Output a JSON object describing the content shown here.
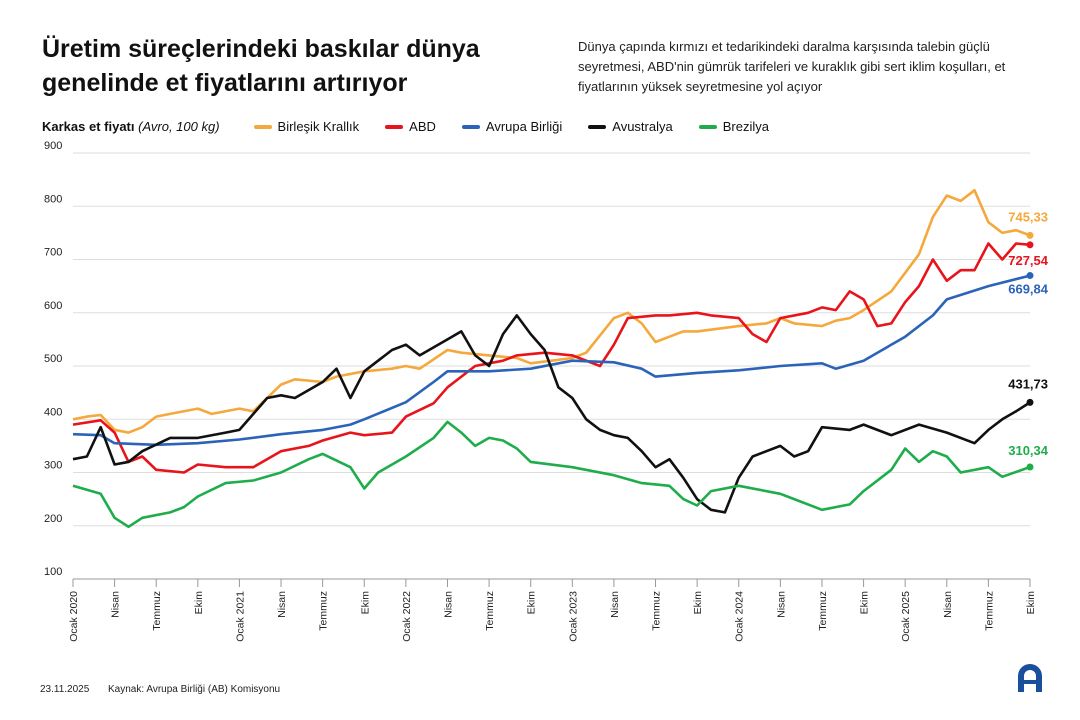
{
  "title": "Üretim süreçlerindeki baskılar dünya genelinde et fiyatlarını artırıyor",
  "subtitle": "Dünya çapında kırmızı et tedarikindeki daralma karşısında talebin güçlü seyretmesi, ABD'nin gümrük tarifeleri ve kuraklık gibi sert iklim koşulları, et fiyatlarının yüksek seyretmesine yol açıyor",
  "footer": {
    "date": "23.11.2025",
    "source": "Kaynak: Avrupa Birliği (AB) Komisyonu",
    "logo": "AA"
  },
  "chart_data": {
    "type": "line",
    "ylabel": "Karkas et fiyatı",
    "yunit": "(Avro, 100 kg)",
    "ylim": [
      100,
      900
    ],
    "yticks": [
      100,
      200,
      300,
      400,
      500,
      600,
      700,
      800,
      900
    ],
    "grid": true,
    "legend": "top",
    "xticks": [
      "Ocak 2020",
      "Nisan",
      "Temmuz",
      "Ekim",
      "Ocak 2021",
      "Nisan",
      "Temmuz",
      "Ekim",
      "Ocak 2022",
      "Nisan",
      "Temmuz",
      "Ekim",
      "Ocak 2023",
      "Nisan",
      "Temmuz",
      "Ekim",
      "Ocak 2024",
      "Nisan",
      "Temmuz",
      "Ekim",
      "Ocak 2025",
      "Nisan",
      "Temmuz",
      "Ekim"
    ],
    "series": [
      {
        "name": "Birleşik Krallık",
        "color": "#f5a83c",
        "end_label": "745,33",
        "points": [
          [
            "2020-01",
            400
          ],
          [
            "2020-02",
            405
          ],
          [
            "2020-03",
            408
          ],
          [
            "2020-04",
            380
          ],
          [
            "2020-05",
            375
          ],
          [
            "2020-06",
            385
          ],
          [
            "2020-07",
            405
          ],
          [
            "2020-08",
            410
          ],
          [
            "2020-10",
            420
          ],
          [
            "2020-11",
            410
          ],
          [
            "2021-01",
            420
          ],
          [
            "2021-02",
            415
          ],
          [
            "2021-04",
            465
          ],
          [
            "2021-05",
            475
          ],
          [
            "2021-07",
            470
          ],
          [
            "2021-08",
            480
          ],
          [
            "2021-10",
            490
          ],
          [
            "2021-12",
            495
          ],
          [
            "2022-01",
            500
          ],
          [
            "2022-02",
            495
          ],
          [
            "2022-04",
            530
          ],
          [
            "2022-05",
            525
          ],
          [
            "2022-07",
            520
          ],
          [
            "2022-09",
            515
          ],
          [
            "2022-10",
            505
          ],
          [
            "2023-01",
            515
          ],
          [
            "2023-02",
            525
          ],
          [
            "2023-04",
            590
          ],
          [
            "2023-05",
            600
          ],
          [
            "2023-06",
            580
          ],
          [
            "2023-07",
            545
          ],
          [
            "2023-08",
            555
          ],
          [
            "2023-09",
            565
          ],
          [
            "2023-10",
            565
          ],
          [
            "2024-01",
            575
          ],
          [
            "2024-03",
            580
          ],
          [
            "2024-04",
            590
          ],
          [
            "2024-05",
            580
          ],
          [
            "2024-07",
            575
          ],
          [
            "2024-08",
            585
          ],
          [
            "2024-09",
            590
          ],
          [
            "2024-10",
            605
          ],
          [
            "2024-12",
            640
          ],
          [
            "2025-01",
            675
          ],
          [
            "2025-02",
            710
          ],
          [
            "2025-03",
            780
          ],
          [
            "2025-04",
            820
          ],
          [
            "2025-05",
            810
          ],
          [
            "2025-06",
            830
          ],
          [
            "2025-07",
            770
          ],
          [
            "2025-08",
            750
          ],
          [
            "2025-09",
            755
          ],
          [
            "2025-10",
            745.33
          ]
        ]
      },
      {
        "name": "ABD",
        "color": "#e8141c",
        "end_label": "727,54",
        "points": [
          [
            "2020-01",
            390
          ],
          [
            "2020-03",
            398
          ],
          [
            "2020-04",
            375
          ],
          [
            "2020-05",
            320
          ],
          [
            "2020-06",
            330
          ],
          [
            "2020-07",
            305
          ],
          [
            "2020-09",
            300
          ],
          [
            "2020-10",
            315
          ],
          [
            "2020-12",
            310
          ],
          [
            "2021-01",
            310
          ],
          [
            "2021-02",
            310
          ],
          [
            "2021-04",
            340
          ],
          [
            "2021-06",
            350
          ],
          [
            "2021-07",
            360
          ],
          [
            "2021-09",
            375
          ],
          [
            "2021-10",
            370
          ],
          [
            "2021-12",
            375
          ],
          [
            "2022-01",
            405
          ],
          [
            "2022-03",
            430
          ],
          [
            "2022-04",
            460
          ],
          [
            "2022-06",
            500
          ],
          [
            "2022-08",
            510
          ],
          [
            "2022-09",
            520
          ],
          [
            "2022-11",
            525
          ],
          [
            "2023-01",
            520
          ],
          [
            "2023-03",
            500
          ],
          [
            "2023-04",
            540
          ],
          [
            "2023-05",
            590
          ],
          [
            "2023-07",
            595
          ],
          [
            "2023-08",
            595
          ],
          [
            "2023-10",
            600
          ],
          [
            "2023-11",
            595
          ],
          [
            "2024-01",
            590
          ],
          [
            "2024-02",
            560
          ],
          [
            "2024-03",
            545
          ],
          [
            "2024-04",
            590
          ],
          [
            "2024-06",
            600
          ],
          [
            "2024-07",
            610
          ],
          [
            "2024-08",
            605
          ],
          [
            "2024-09",
            640
          ],
          [
            "2024-10",
            625
          ],
          [
            "2024-11",
            575
          ],
          [
            "2024-12",
            580
          ],
          [
            "2025-01",
            620
          ],
          [
            "2025-02",
            650
          ],
          [
            "2025-03",
            700
          ],
          [
            "2025-04",
            660
          ],
          [
            "2025-05",
            680
          ],
          [
            "2025-06",
            680
          ],
          [
            "2025-07",
            730
          ],
          [
            "2025-08",
            700
          ],
          [
            "2025-09",
            730
          ],
          [
            "2025-10",
            727.54
          ]
        ]
      },
      {
        "name": "Avrupa Birliği",
        "color": "#2b63b8",
        "end_label": "669,84",
        "points": [
          [
            "2020-01",
            372
          ],
          [
            "2020-03",
            370
          ],
          [
            "2020-04",
            355
          ],
          [
            "2020-07",
            352
          ],
          [
            "2020-10",
            355
          ],
          [
            "2021-01",
            362
          ],
          [
            "2021-04",
            372
          ],
          [
            "2021-07",
            380
          ],
          [
            "2021-09",
            390
          ],
          [
            "2021-10",
            400
          ],
          [
            "2022-01",
            432
          ],
          [
            "2022-03",
            470
          ],
          [
            "2022-04",
            490
          ],
          [
            "2022-07",
            490
          ],
          [
            "2022-10",
            495
          ],
          [
            "2023-01",
            510
          ],
          [
            "2023-04",
            507
          ],
          [
            "2023-06",
            495
          ],
          [
            "2023-07",
            480
          ],
          [
            "2023-10",
            487
          ],
          [
            "2024-01",
            492
          ],
          [
            "2024-04",
            500
          ],
          [
            "2024-07",
            505
          ],
          [
            "2024-08",
            495
          ],
          [
            "2024-10",
            510
          ],
          [
            "2025-01",
            555
          ],
          [
            "2025-03",
            595
          ],
          [
            "2025-04",
            625
          ],
          [
            "2025-07",
            650
          ],
          [
            "2025-10",
            669.84
          ]
        ]
      },
      {
        "name": "Avustralya",
        "color": "#111111",
        "end_label": "431,73",
        "points": [
          [
            "2020-01",
            325
          ],
          [
            "2020-02",
            330
          ],
          [
            "2020-03",
            385
          ],
          [
            "2020-04",
            315
          ],
          [
            "2020-05",
            320
          ],
          [
            "2020-06",
            340
          ],
          [
            "2020-08",
            365
          ],
          [
            "2020-10",
            365
          ],
          [
            "2020-12",
            375
          ],
          [
            "2021-01",
            380
          ],
          [
            "2021-03",
            440
          ],
          [
            "2021-04",
            445
          ],
          [
            "2021-05",
            440
          ],
          [
            "2021-07",
            470
          ],
          [
            "2021-08",
            495
          ],
          [
            "2021-09",
            440
          ],
          [
            "2021-10",
            490
          ],
          [
            "2021-12",
            530
          ],
          [
            "2022-01",
            540
          ],
          [
            "2022-02",
            520
          ],
          [
            "2022-04",
            550
          ],
          [
            "2022-05",
            565
          ],
          [
            "2022-06",
            520
          ],
          [
            "2022-07",
            500
          ],
          [
            "2022-08",
            560
          ],
          [
            "2022-09",
            595
          ],
          [
            "2022-10",
            560
          ],
          [
            "2022-11",
            530
          ],
          [
            "2022-12",
            460
          ],
          [
            "2023-01",
            440
          ],
          [
            "2023-02",
            400
          ],
          [
            "2023-03",
            380
          ],
          [
            "2023-04",
            370
          ],
          [
            "2023-05",
            365
          ],
          [
            "2023-06",
            340
          ],
          [
            "2023-07",
            310
          ],
          [
            "2023-08",
            325
          ],
          [
            "2023-09",
            290
          ],
          [
            "2023-10",
            250
          ],
          [
            "2023-11",
            230
          ],
          [
            "2023-12",
            225
          ],
          [
            "2024-01",
            290
          ],
          [
            "2024-02",
            330
          ],
          [
            "2024-04",
            350
          ],
          [
            "2024-05",
            330
          ],
          [
            "2024-06",
            340
          ],
          [
            "2024-07",
            385
          ],
          [
            "2024-09",
            380
          ],
          [
            "2024-10",
            390
          ],
          [
            "2024-12",
            370
          ],
          [
            "2025-02",
            390
          ],
          [
            "2025-04",
            375
          ],
          [
            "2025-06",
            355
          ],
          [
            "2025-07",
            380
          ],
          [
            "2025-08",
            400
          ],
          [
            "2025-09",
            415
          ],
          [
            "2025-10",
            431.73
          ]
        ]
      },
      {
        "name": "Brezilya",
        "color": "#1fad4b",
        "end_label": "310,34",
        "points": [
          [
            "2020-01",
            275
          ],
          [
            "2020-03",
            260
          ],
          [
            "2020-04",
            215
          ],
          [
            "2020-05",
            198
          ],
          [
            "2020-06",
            215
          ],
          [
            "2020-08",
            225
          ],
          [
            "2020-09",
            235
          ],
          [
            "2020-10",
            255
          ],
          [
            "2020-12",
            280
          ],
          [
            "2021-02",
            285
          ],
          [
            "2021-04",
            300
          ],
          [
            "2021-06",
            325
          ],
          [
            "2021-07",
            335
          ],
          [
            "2021-09",
            310
          ],
          [
            "2021-10",
            270
          ],
          [
            "2021-11",
            300
          ],
          [
            "2022-01",
            330
          ],
          [
            "2022-03",
            365
          ],
          [
            "2022-04",
            395
          ],
          [
            "2022-05",
            375
          ],
          [
            "2022-06",
            350
          ],
          [
            "2022-07",
            365
          ],
          [
            "2022-08",
            360
          ],
          [
            "2022-09",
            345
          ],
          [
            "2022-10",
            320
          ],
          [
            "2023-01",
            310
          ],
          [
            "2023-04",
            295
          ],
          [
            "2023-06",
            280
          ],
          [
            "2023-08",
            275
          ],
          [
            "2023-09",
            250
          ],
          [
            "2023-10",
            238
          ],
          [
            "2023-11",
            265
          ],
          [
            "2024-01",
            275
          ],
          [
            "2024-04",
            260
          ],
          [
            "2024-05",
            250
          ],
          [
            "2024-07",
            230
          ],
          [
            "2024-09",
            240
          ],
          [
            "2024-10",
            265
          ],
          [
            "2024-12",
            305
          ],
          [
            "2025-01",
            345
          ],
          [
            "2025-02",
            320
          ],
          [
            "2025-03",
            340
          ],
          [
            "2025-04",
            330
          ],
          [
            "2025-05",
            300
          ],
          [
            "2025-07",
            310
          ],
          [
            "2025-08",
            292
          ],
          [
            "2025-10",
            310.34
          ]
        ]
      }
    ]
  }
}
